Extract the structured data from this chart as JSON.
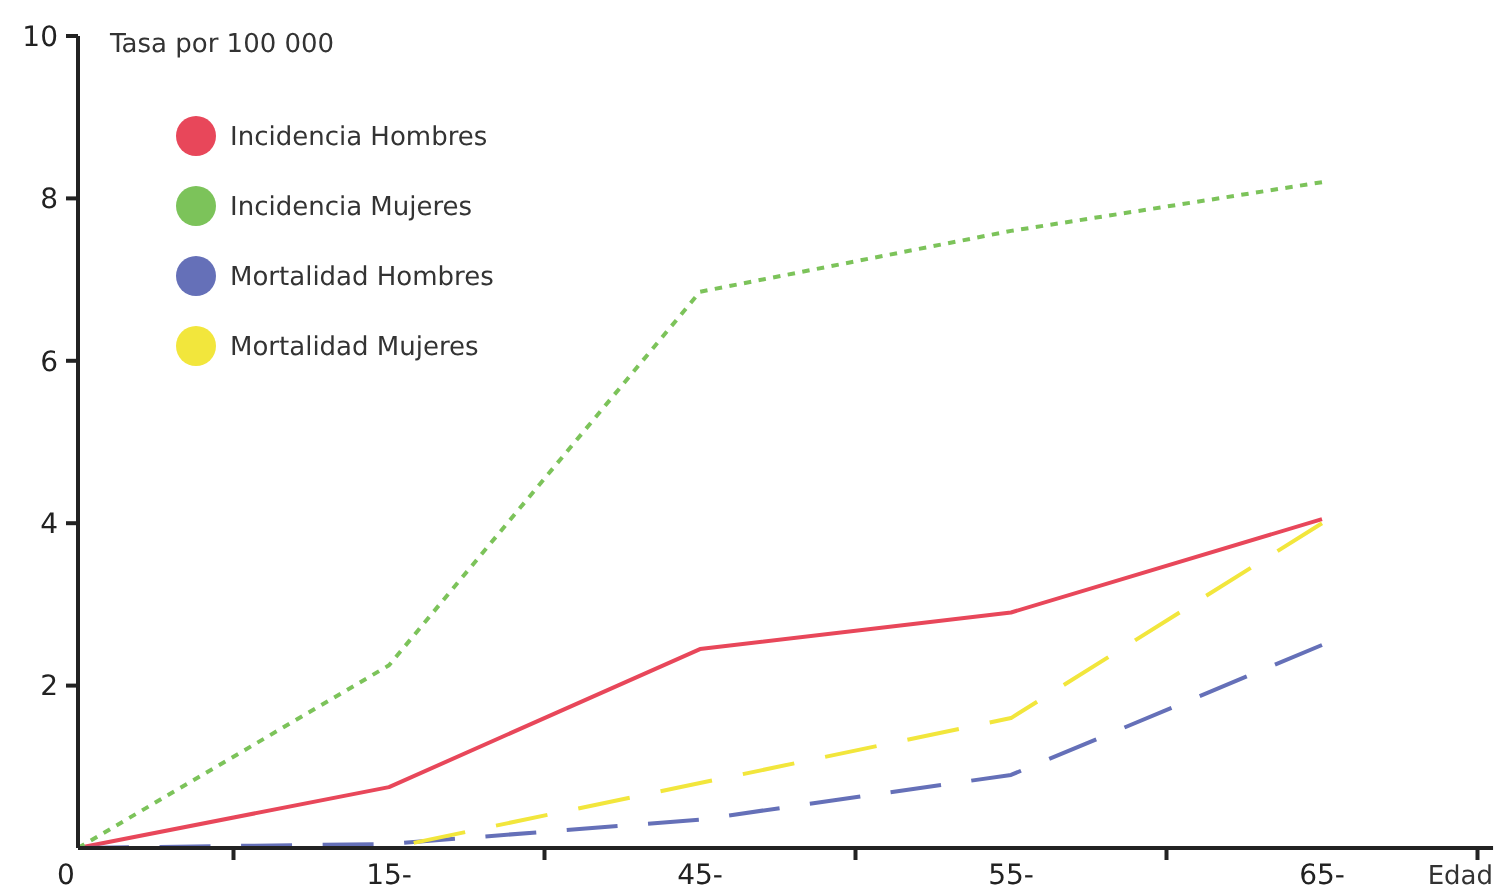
{
  "chart_data": {
    "type": "line",
    "categories": [
      "0",
      "15-",
      "45-",
      "55-",
      "65-"
    ],
    "xlabel": "Edad",
    "ylabel": "Tasa por 100 000",
    "ylim": [
      0,
      10
    ],
    "yticks": [
      2,
      4,
      6,
      8,
      10
    ],
    "legend": "top left",
    "grid": false,
    "marker": "none",
    "series": [
      {
        "name": "Incidencia Hombres",
        "color": "#e8475a",
        "line_style": "solid",
        "values": [
          0,
          0.75,
          2.45,
          2.9,
          4.05
        ]
      },
      {
        "name": "Incidencia Mujeres",
        "color": "#7cc35a",
        "line_style": "dotted",
        "values": [
          0,
          2.25,
          6.85,
          7.6,
          8.2
        ]
      },
      {
        "name": "Mortalidad Hombres",
        "color": "#6570b8",
        "line_style": "dashed",
        "values": [
          0,
          0.05,
          0.35,
          0.9,
          2.5
        ]
      },
      {
        "name": "Mortalidad Mujeres",
        "color": "#f2e63c",
        "line_style": "dashed",
        "values": [
          0,
          0,
          0.8,
          1.6,
          4.0
        ]
      }
    ]
  }
}
